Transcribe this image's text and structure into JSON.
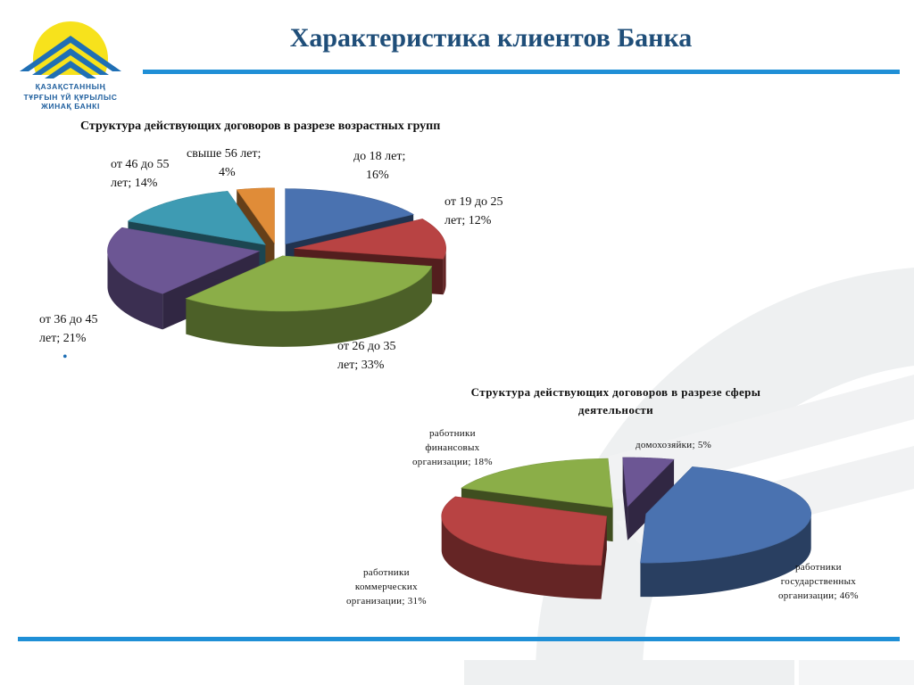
{
  "header": {
    "title": "Характеристика клиентов Банка",
    "logo_line1": "ҚАЗАҚСТАННЫҢ",
    "logo_line2": "ТҰРҒЫН ҮЙ ҚҰРЫЛЫС ЖИНАҚ БАНКІ"
  },
  "bullet": "•",
  "colors": {
    "blue": "#4a72b0",
    "red": "#b84343",
    "green": "#8bae48",
    "purple": "#6c5694",
    "teal": "#3e9bb3",
    "orange": "#e08c38",
    "accent_line": "#1f8fd6",
    "title_text": "#1f4e79"
  },
  "chart_data": [
    {
      "type": "pie",
      "title": "Структура действующих договоров в разрезе возрастных групп",
      "slices": [
        {
          "label_line1": "до 18 лет;",
          "label_line2": "16%",
          "value": 16,
          "color": "blue"
        },
        {
          "label_line1": "от 19 до 25",
          "label_line2": "лет; 12%",
          "value": 12,
          "color": "red"
        },
        {
          "label_line1": "от 26 до 35",
          "label_line2": "лет; 33%",
          "value": 33,
          "color": "green"
        },
        {
          "label_line1": "от 36 до 45",
          "label_line2": "лет; 21%",
          "value": 21,
          "color": "purple"
        },
        {
          "label_line1": "от 46 до 55",
          "label_line2": "лет; 14%",
          "value": 14,
          "color": "teal"
        },
        {
          "label_line1": "свыше 56 лет;",
          "label_line2": "4%",
          "value": 4,
          "color": "orange"
        }
      ]
    },
    {
      "type": "pie",
      "title_line1": "Структура действующих договоров в разрезе сферы",
      "title_line2": "деятельности",
      "slices": [
        {
          "label": "домохозяйки; 5%",
          "value": 5,
          "color": "purple"
        },
        {
          "label_line1": "работники",
          "label_line2": "государственных",
          "label_line3": "организации; 46%",
          "value": 46,
          "color": "blue"
        },
        {
          "label_line1": "работники",
          "label_line2": "коммерческих",
          "label_line3": "организации; 31%",
          "value": 31,
          "color": "red"
        },
        {
          "label_line1": "работники",
          "label_line2": "финансовых",
          "label_line3": "организации; 18%",
          "value": 18,
          "color": "green"
        }
      ]
    }
  ]
}
